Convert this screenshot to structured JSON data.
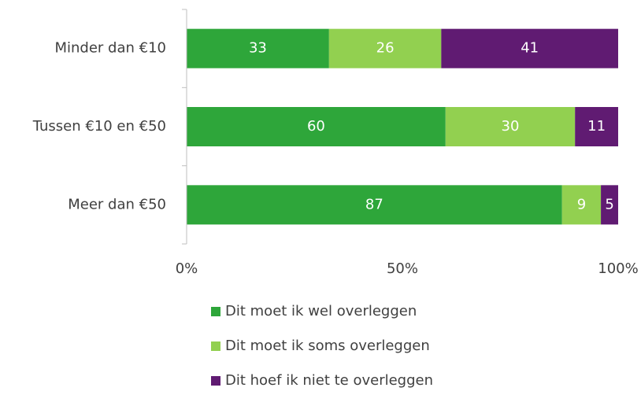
{
  "chart_data": {
    "type": "stacked_bar_horizontal",
    "categories": [
      "Minder dan €10",
      "Tussen €10 en €50",
      "Meer dan €50"
    ],
    "series": [
      {
        "name": "Dit moet ik wel overleggen",
        "color": "#2ea63a",
        "values": [
          33,
          60,
          87
        ]
      },
      {
        "name": "Dit moet ik soms overleggen",
        "color": "#92d050",
        "values": [
          26,
          30,
          9
        ]
      },
      {
        "name": "Dit hoef ik niet te overleggen",
        "color": "#601b72",
        "values": [
          41,
          11,
          5
        ]
      }
    ],
    "xlim": [
      0,
      100
    ],
    "xticks": [
      {
        "value": 0,
        "label": "0%"
      },
      {
        "value": 50,
        "label": "50%"
      },
      {
        "value": 100,
        "label": "100%"
      }
    ],
    "legend": "bottom"
  }
}
